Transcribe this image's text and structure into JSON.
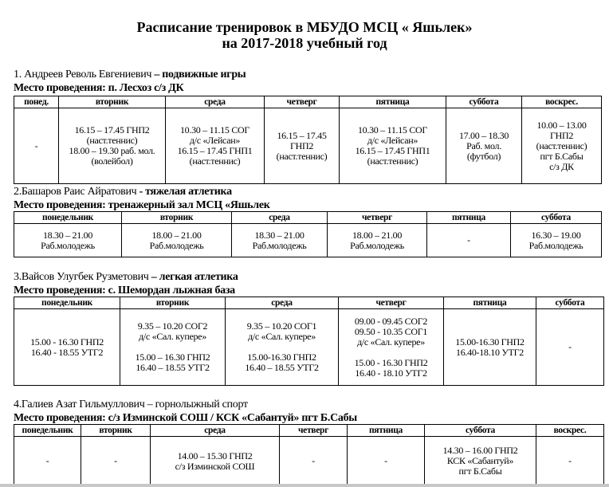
{
  "header": {
    "title_line1": "Расписание тренировок в МБУДО МСЦ « Яшьлек»",
    "title_line2": "на 2017-2018 учебный год"
  },
  "sections": [
    {
      "person": "1. Андреев Револь Евгениевич",
      "sport": " – подвижные игры",
      "place": "Место проведения: п. Лесхоз с/з ДК",
      "headers": [
        "понед.",
        "вторник",
        "среда",
        "четверг",
        "пятница",
        "суббота",
        "воскрес."
      ],
      "cells": [
        [
          "-"
        ],
        [
          "16.15 – 17.45 ГНП2",
          "(наст.теннис)",
          "18.00 – 19.30 раб. мол.",
          "(волейбол)"
        ],
        [
          "10.30 – 11.15 СОГ",
          "д/с «Лейсан»",
          "16.15 – 17.45 ГНП1",
          "(наст.теннис)"
        ],
        [
          "16.15 – 17.45",
          "ГНП2",
          "(наст.теннис)"
        ],
        [
          "10.30 – 11.15 СОГ",
          "д/с «Лейсан»",
          "16.15 – 17.45 ГНП1",
          "(наст.теннис)"
        ],
        [
          "17.00 – 18.30",
          "Раб. мол.",
          "(футбол)"
        ],
        [
          "10.00 – 13.00",
          "ГНП2",
          "(наст.теннис)",
          "пгт Б.Сабы",
          "с/з ДК"
        ]
      ]
    },
    {
      "person": "2.Башаров Раис Айратович",
      "sport": " - тяжелая атлетика",
      "place": "Место проведения: тренажерный зал МСЦ «Яшьлек",
      "headers": [
        "понедельник",
        "вторник",
        "среда",
        "четверг",
        "пятница",
        "суббота"
      ],
      "cells": [
        [
          "18.30 – 21.00",
          "Раб.молодежь"
        ],
        [
          "18.00 – 21.00",
          "Раб.молодежь"
        ],
        [
          "18.30 – 21.00",
          "Раб.молодежь"
        ],
        [
          "18.00 – 21.00",
          "Раб.молодежь"
        ],
        [
          "-"
        ],
        [
          "16.30 – 19.00",
          "Раб.молодежь"
        ]
      ]
    },
    {
      "person": "3.Вайсов Улугбек  Рузметович",
      "sport": " – легкая атлетика",
      "place": "Место проведения: с. Шемордан лыжная база",
      "headers": [
        "понедельник",
        "вторник",
        "среда",
        "четверг",
        "пятница",
        "суббота"
      ],
      "cells": [
        [
          "15.00 - 16.30 ГНП2",
          "16.40 - 18.55 УТГ2"
        ],
        [
          "9.35 – 10.20 СОГ2",
          "д/с «Сал. купере»",
          "",
          "15.00 – 16.30 ГНП2",
          "16.40 – 18.55 УТГ2"
        ],
        [
          "9.35 – 10.20 СОГ1",
          "д/с «Сал. купере»",
          "",
          "15.00-16.30 ГНП2",
          "16.40 – 18.55 УТГ2"
        ],
        [
          "09.00 - 09.45 СОГ2",
          "09.50 - 10.35 СОГ1",
          "д/с «Сал. купере»",
          "",
          "15.00 - 16.30 ГНП2",
          "16.40 - 18.10 УТГ2"
        ],
        [
          "15.00-16.30 ГНП2",
          "16.40-18.10 УТГ2"
        ],
        [
          "-"
        ]
      ]
    },
    {
      "person": "4.Галиев Азат Гильмуллович",
      "sport": "  – горнолыжный спорт",
      "place": "Место проведения: с/з Изминской СОШ / КСК «Сабантуй» пгт Б.Сабы",
      "headers": [
        "понедельник",
        "вторник",
        "среда",
        "четверг",
        "пятница",
        "суббота",
        "воскрес."
      ],
      "cells": [
        [
          "-"
        ],
        [
          "-"
        ],
        [
          "14.00 – 15.30 ГНП2",
          "с/з Изминской СОШ"
        ],
        [
          "-"
        ],
        [
          "-"
        ],
        [
          "14.30 – 16.00 ГНП2",
          "КСК «Сабантуй»",
          "пгт Б.Сабы"
        ],
        [
          "-"
        ]
      ]
    }
  ]
}
